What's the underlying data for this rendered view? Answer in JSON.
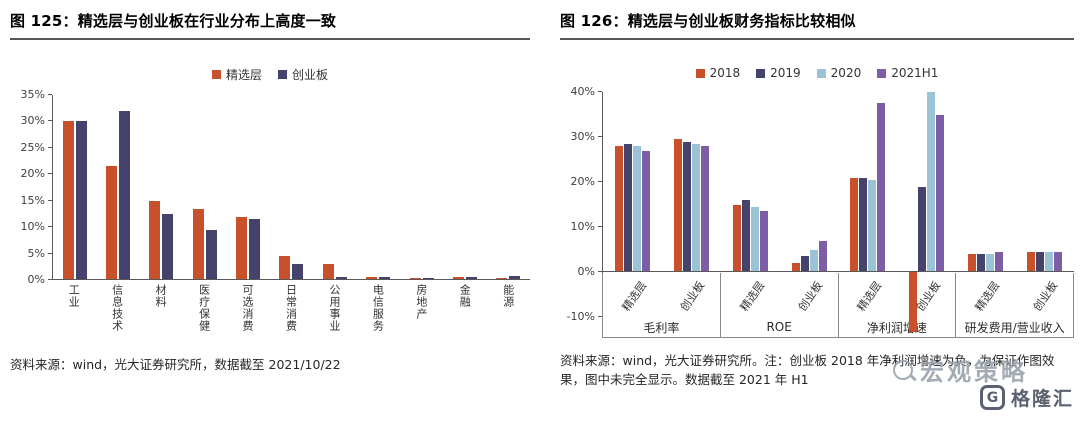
{
  "figure_left": {
    "title": "图 125：精选层与创业板在行业分布上高度一致",
    "source": "资料来源：wind，光大证券研究所，数据截至 2021/10/22"
  },
  "figure_right": {
    "title": "图 126：精选层与创业板财务指标比较相似",
    "source": "资料来源：wind，光大证券研究所。注：创业板 2018 年净利润增速为负，为保证作图效果，图中未完全显示。数据截至 2021 年 H1"
  },
  "watermark": {
    "text": "宏观策略"
  },
  "logo": {
    "icon": "G",
    "text": "格隆汇"
  },
  "chart_data": [
    {
      "type": "bar",
      "title": "精选层与创业板在行业分布上高度一致",
      "categories": [
        "工业",
        "信息技术",
        "材料",
        "医疗保健",
        "可选消费",
        "日常消费",
        "公用事业",
        "电信服务",
        "房地产",
        "金融",
        "能源"
      ],
      "series": [
        {
          "name": "精选层",
          "color": "#C8502B",
          "values": [
            30,
            21.5,
            15,
            13.5,
            12,
            4.5,
            3,
            0.5,
            0.3,
            0.5,
            0.3
          ]
        },
        {
          "name": "创业板",
          "color": "#45436B",
          "values": [
            30,
            32,
            12.5,
            9.5,
            11.5,
            3,
            0.5,
            0.5,
            0.3,
            0.5,
            0.7
          ]
        }
      ],
      "ylabel": "",
      "ylim": [
        0,
        35
      ],
      "ytick_step": 5,
      "grid": false,
      "legend_position": "top"
    },
    {
      "type": "bar",
      "title": "精选层与创业板财务指标比较相似",
      "group_labels": [
        "毛利率",
        "ROE",
        "净利润增速",
        "研发费用/营业收入"
      ],
      "categories": [
        "精选层",
        "创业板",
        "精选层",
        "创业板",
        "精选层",
        "创业板",
        "精选层",
        "创业板"
      ],
      "series": [
        {
          "name": "2018",
          "color": "#C8502B",
          "values": [
            28,
            29.5,
            15,
            2,
            21,
            -15,
            4,
            4.5
          ]
        },
        {
          "name": "2019",
          "color": "#45436B",
          "values": [
            28.5,
            29,
            16,
            3.5,
            21,
            19,
            4,
            4.5
          ]
        },
        {
          "name": "2020",
          "color": "#9CC2D5",
          "values": [
            28,
            28.5,
            14.5,
            5,
            20.5,
            40,
            4,
            4.5
          ]
        },
        {
          "name": "2021H1",
          "color": "#7D5EA6",
          "values": [
            27,
            28,
            13.5,
            7,
            37.5,
            35,
            4.5,
            4.5
          ]
        }
      ],
      "ylabel": "",
      "ylim": [
        -10,
        40
      ],
      "ytick_step": 10,
      "grid": false,
      "legend_position": "top"
    }
  ]
}
